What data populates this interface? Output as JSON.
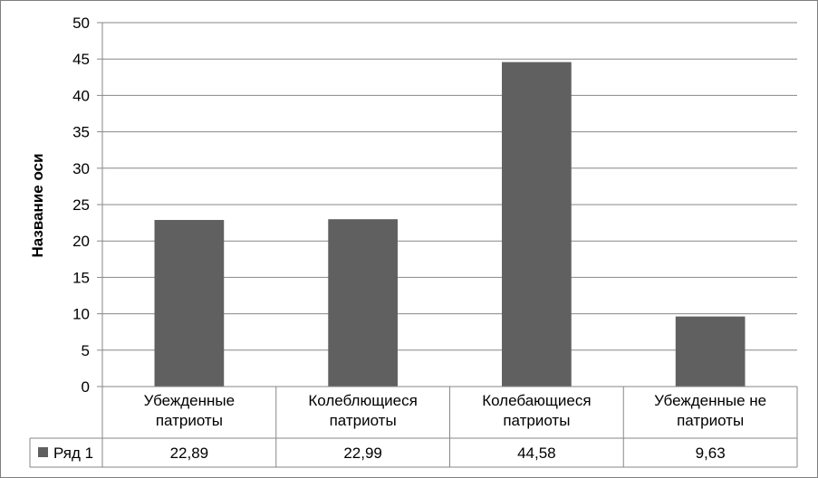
{
  "chart_data": {
    "type": "bar",
    "title": "",
    "xlabel": "",
    "ylabel": "Название оси",
    "ylim": [
      0,
      50
    ],
    "ytick_step": 5,
    "yticks": [
      "0",
      "5",
      "10",
      "15",
      "20",
      "25",
      "30",
      "35",
      "40",
      "45",
      "50"
    ],
    "grid": true,
    "categories": [
      [
        "Убежденные",
        "патриоты"
      ],
      [
        "Колеблющиеся",
        "патриоты"
      ],
      [
        "Колебающиеся",
        "патриоты"
      ],
      [
        "Убежденные не",
        "патриоты"
      ]
    ],
    "series": [
      {
        "name": "Ряд 1",
        "values": [
          22.89,
          22.99,
          44.58,
          9.63
        ],
        "labels": [
          "22,89",
          "22,99",
          "44,58",
          "9,63"
        ],
        "color": "#606060"
      }
    ],
    "data_table": true
  }
}
